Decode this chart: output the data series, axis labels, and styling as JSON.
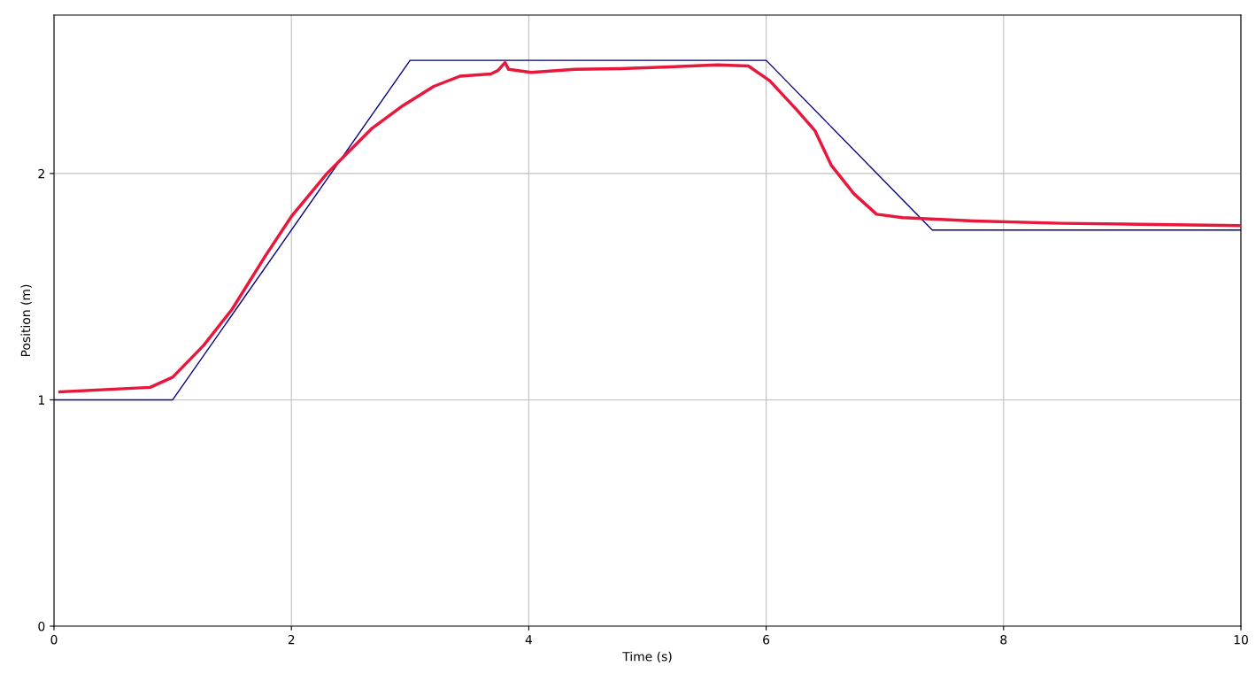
{
  "chart_data": {
    "type": "line",
    "xlabel": "Time (s)",
    "ylabel": "Position (m)",
    "xlim": [
      0,
      10
    ],
    "ylim": [
      0,
      2.7
    ],
    "xticks": [
      0,
      2,
      4,
      6,
      8,
      10
    ],
    "yticks": [
      0,
      1,
      2
    ],
    "grid": true,
    "series": [
      {
        "color": "#000080",
        "x": [
          0,
          1,
          3,
          6,
          7.4,
          10
        ],
        "values": [
          1,
          1,
          2.5,
          2.5,
          1.75,
          1.75
        ]
      },
      {
        "color": "#e8173c",
        "x": [
          0.05,
          0.81,
          1.0,
          1.26,
          1.5,
          1.78,
          2.0,
          2.3,
          2.68,
          2.94,
          3.2,
          3.42,
          3.68,
          3.74,
          3.8,
          3.83,
          4.02,
          4.39,
          4.77,
          5.14,
          5.59,
          5.85,
          6.03,
          6.26,
          6.41,
          6.55,
          6.74,
          6.93,
          7.15,
          7.75,
          8.49,
          9.98
        ],
        "values": [
          1.035,
          1.055,
          1.1,
          1.24,
          1.4,
          1.635,
          1.81,
          2.0,
          2.2,
          2.3,
          2.385,
          2.43,
          2.44,
          2.455,
          2.49,
          2.46,
          2.447,
          2.46,
          2.463,
          2.47,
          2.48,
          2.475,
          2.41,
          2.28,
          2.19,
          2.035,
          1.91,
          1.82,
          1.805,
          1.79,
          1.78,
          1.77
        ]
      }
    ]
  }
}
